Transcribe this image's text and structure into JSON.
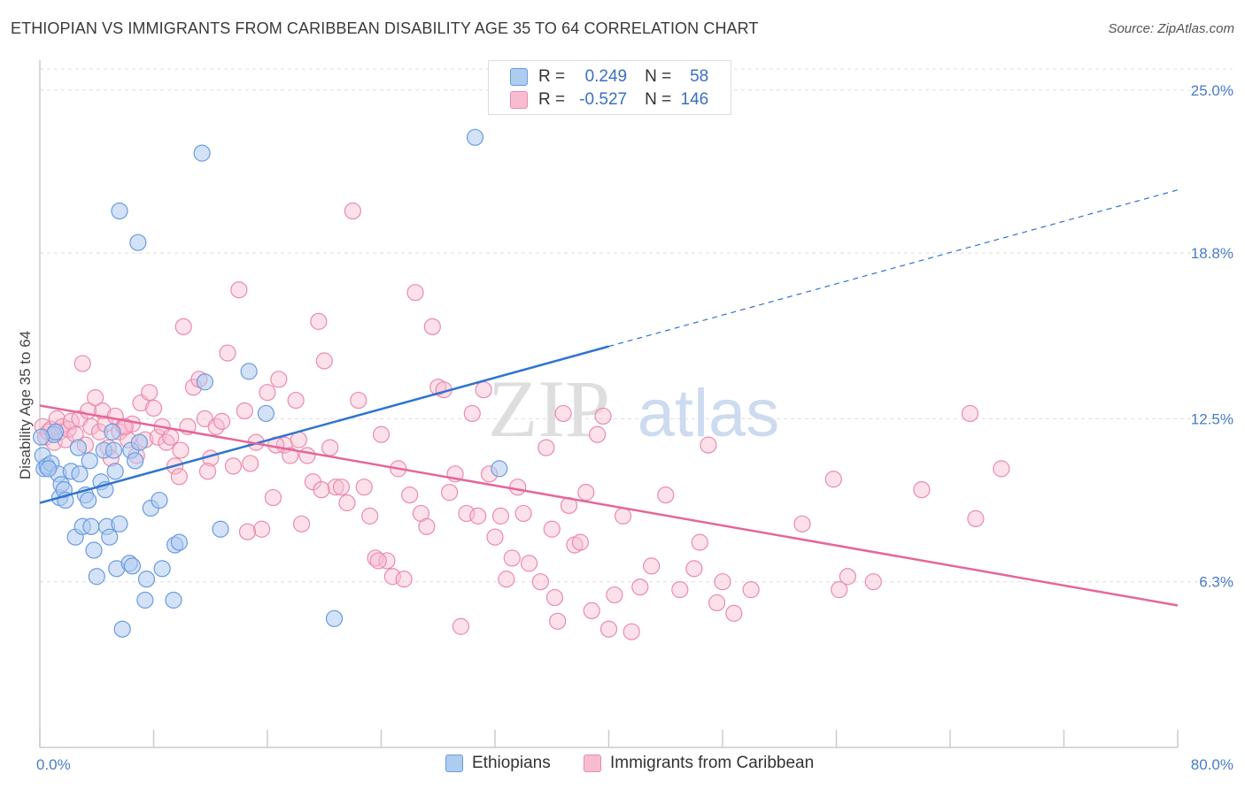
{
  "header": {
    "title": "ETHIOPIAN VS IMMIGRANTS FROM CARIBBEAN DISABILITY AGE 35 TO 64 CORRELATION CHART",
    "source": "Source: ZipAtlas.com"
  },
  "watermark": {
    "part1": "ZIP",
    "part2": "atlas"
  },
  "legend": {
    "series": [
      {
        "name": "Ethiopians",
        "r_label": "R =",
        "r_value": "0.249",
        "n_label": "N =",
        "n_value": "58"
      },
      {
        "name": "Immigrants from Caribbean",
        "r_label": "R =",
        "r_value": "-0.527",
        "n_label": "N =",
        "n_value": "146"
      }
    ]
  },
  "colors": {
    "ethiopian_fill": "#aecbf0",
    "ethiopian_stroke": "#6a9be0",
    "ethiopian_line": "#2f74d0",
    "caribbean_fill": "#f8bcd0",
    "caribbean_stroke": "#eb8aaa",
    "caribbean_line": "#e4679a",
    "grid": "#dddddd",
    "axis_text": "#4a7cc9",
    "watermark": "#dcdcdc",
    "watermark2": "#c8d8ee"
  },
  "chart_data": {
    "type": "scatter",
    "title": "ETHIOPIAN VS IMMIGRANTS FROM CARIBBEAN DISABILITY AGE 35 TO 64 CORRELATION CHART",
    "ylabel": "Disability Age 35 to 64",
    "xlabel": "",
    "xlim": [
      0,
      80
    ],
    "ylim": [
      0,
      25.8
    ],
    "x_tick_labels": [
      {
        "value": 0,
        "label": "0.0%"
      },
      {
        "value": 80,
        "label": "80.0%"
      }
    ],
    "y_ticks": [
      {
        "value": 6.3,
        "label": "6.3%"
      },
      {
        "value": 12.5,
        "label": "12.5%"
      },
      {
        "value": 18.8,
        "label": "18.8%"
      },
      {
        "value": 25.0,
        "label": "25.0%"
      }
    ],
    "legend_position": "bottom",
    "series": [
      {
        "name": "Ethiopians",
        "trend": {
          "x_start": 0,
          "y_start": 9.3,
          "x_solid_end": 40,
          "x_end": 80,
          "y_end": 21.2
        },
        "points": [
          [
            0.2,
            11.1
          ],
          [
            0.3,
            10.6
          ],
          [
            0.5,
            10.7
          ],
          [
            0.8,
            10.8
          ],
          [
            1.0,
            11.9
          ],
          [
            1.3,
            10.4
          ],
          [
            1.4,
            9.5
          ],
          [
            1.5,
            10.0
          ],
          [
            1.7,
            9.8
          ],
          [
            1.8,
            9.4
          ],
          [
            2.2,
            10.5
          ],
          [
            2.5,
            8.0
          ],
          [
            2.7,
            11.4
          ],
          [
            2.8,
            10.4
          ],
          [
            3.0,
            8.4
          ],
          [
            3.2,
            9.6
          ],
          [
            3.4,
            9.4
          ],
          [
            3.5,
            10.9
          ],
          [
            3.6,
            8.4
          ],
          [
            3.8,
            7.5
          ],
          [
            4.0,
            6.5
          ],
          [
            4.3,
            10.1
          ],
          [
            4.5,
            11.3
          ],
          [
            4.6,
            9.8
          ],
          [
            4.7,
            8.4
          ],
          [
            4.9,
            8.0
          ],
          [
            5.1,
            12.0
          ],
          [
            5.2,
            11.3
          ],
          [
            5.3,
            10.5
          ],
          [
            5.4,
            6.8
          ],
          [
            5.6,
            8.5
          ],
          [
            5.8,
            4.5
          ],
          [
            5.6,
            20.4
          ],
          [
            6.3,
            7.0
          ],
          [
            6.4,
            11.3
          ],
          [
            6.5,
            6.9
          ],
          [
            6.7,
            10.9
          ],
          [
            6.9,
            19.2
          ],
          [
            7.0,
            11.6
          ],
          [
            7.4,
            5.6
          ],
          [
            7.5,
            6.4
          ],
          [
            7.8,
            9.1
          ],
          [
            8.4,
            9.4
          ],
          [
            8.6,
            6.8
          ],
          [
            9.4,
            5.6
          ],
          [
            9.5,
            7.7
          ],
          [
            9.8,
            7.8
          ],
          [
            11.4,
            22.6
          ],
          [
            11.6,
            13.9
          ],
          [
            12.7,
            8.3
          ],
          [
            14.7,
            14.3
          ],
          [
            15.9,
            12.7
          ],
          [
            20.7,
            4.9
          ],
          [
            30.6,
            23.2
          ],
          [
            32.3,
            10.6
          ],
          [
            0.6,
            10.6
          ],
          [
            1.1,
            12.0
          ],
          [
            0.1,
            11.8
          ]
        ]
      },
      {
        "name": "Immigrants from Caribbean",
        "trend": {
          "x_start": 0,
          "y_start": 13.0,
          "x_end": 80,
          "y_end": 5.4
        },
        "points": [
          [
            0.2,
            12.2
          ],
          [
            0.4,
            11.8
          ],
          [
            0.6,
            12.0
          ],
          [
            0.8,
            12.1
          ],
          [
            1.0,
            11.6
          ],
          [
            1.2,
            12.5
          ],
          [
            1.4,
            12.0
          ],
          [
            1.6,
            12.2
          ],
          [
            1.8,
            11.7
          ],
          [
            2.0,
            12.1
          ],
          [
            2.2,
            12.4
          ],
          [
            2.5,
            11.9
          ],
          [
            2.8,
            12.5
          ],
          [
            3.0,
            14.6
          ],
          [
            3.2,
            11.5
          ],
          [
            3.4,
            12.8
          ],
          [
            3.6,
            12.2
          ],
          [
            3.9,
            13.3
          ],
          [
            4.2,
            12.0
          ],
          [
            4.4,
            12.8
          ],
          [
            4.6,
            12.3
          ],
          [
            4.8,
            11.4
          ],
          [
            5.0,
            11.0
          ],
          [
            5.3,
            12.6
          ],
          [
            5.6,
            12.0
          ],
          [
            5.9,
            12.2
          ],
          [
            6.2,
            11.7
          ],
          [
            6.5,
            12.3
          ],
          [
            6.8,
            11.1
          ],
          [
            7.1,
            13.1
          ],
          [
            7.4,
            11.7
          ],
          [
            7.7,
            13.5
          ],
          [
            8.0,
            12.9
          ],
          [
            8.3,
            11.8
          ],
          [
            8.6,
            12.2
          ],
          [
            8.9,
            11.6
          ],
          [
            9.2,
            11.8
          ],
          [
            9.5,
            10.7
          ],
          [
            9.8,
            10.3
          ],
          [
            10.1,
            16.0
          ],
          [
            10.4,
            12.2
          ],
          [
            10.8,
            13.7
          ],
          [
            11.2,
            14.0
          ],
          [
            11.6,
            12.5
          ],
          [
            12.0,
            11.0
          ],
          [
            12.4,
            12.2
          ],
          [
            12.8,
            12.4
          ],
          [
            13.2,
            15.0
          ],
          [
            13.6,
            10.7
          ],
          [
            14.0,
            17.4
          ],
          [
            14.4,
            12.8
          ],
          [
            14.8,
            10.8
          ],
          [
            15.2,
            11.6
          ],
          [
            15.6,
            8.3
          ],
          [
            16.0,
            13.5
          ],
          [
            16.4,
            9.5
          ],
          [
            16.8,
            14.0
          ],
          [
            17.2,
            11.5
          ],
          [
            17.6,
            11.1
          ],
          [
            18.0,
            13.2
          ],
          [
            18.4,
            8.5
          ],
          [
            18.8,
            11.1
          ],
          [
            19.2,
            10.1
          ],
          [
            19.6,
            16.2
          ],
          [
            20.0,
            14.7
          ],
          [
            20.4,
            11.4
          ],
          [
            20.8,
            9.9
          ],
          [
            21.2,
            9.9
          ],
          [
            21.6,
            9.3
          ],
          [
            22.0,
            20.4
          ],
          [
            22.4,
            13.2
          ],
          [
            22.8,
            9.9
          ],
          [
            23.2,
            8.8
          ],
          [
            23.6,
            7.2
          ],
          [
            24.0,
            11.9
          ],
          [
            24.4,
            7.1
          ],
          [
            24.8,
            6.5
          ],
          [
            25.2,
            10.6
          ],
          [
            25.6,
            6.4
          ],
          [
            26.0,
            9.6
          ],
          [
            26.4,
            17.3
          ],
          [
            26.8,
            8.9
          ],
          [
            27.2,
            8.4
          ],
          [
            27.6,
            16.0
          ],
          [
            28.0,
            13.7
          ],
          [
            28.4,
            13.6
          ],
          [
            28.8,
            9.7
          ],
          [
            29.2,
            10.4
          ],
          [
            29.6,
            4.6
          ],
          [
            30.0,
            8.9
          ],
          [
            30.4,
            12.7
          ],
          [
            30.8,
            8.8
          ],
          [
            31.2,
            13.6
          ],
          [
            31.6,
            10.4
          ],
          [
            32.0,
            8.0
          ],
          [
            32.4,
            8.8
          ],
          [
            32.8,
            6.4
          ],
          [
            33.2,
            7.2
          ],
          [
            33.6,
            9.9
          ],
          [
            34.0,
            8.9
          ],
          [
            34.4,
            7.0
          ],
          [
            35.2,
            6.3
          ],
          [
            35.6,
            11.4
          ],
          [
            36.0,
            8.3
          ],
          [
            36.4,
            4.8
          ],
          [
            36.8,
            12.7
          ],
          [
            37.2,
            9.2
          ],
          [
            37.6,
            7.7
          ],
          [
            38.0,
            7.8
          ],
          [
            38.4,
            9.7
          ],
          [
            38.8,
            5.2
          ],
          [
            39.2,
            11.9
          ],
          [
            39.6,
            12.6
          ],
          [
            40.0,
            4.5
          ],
          [
            40.4,
            5.8
          ],
          [
            41.0,
            8.8
          ],
          [
            41.6,
            4.4
          ],
          [
            42.2,
            6.1
          ],
          [
            43.0,
            6.9
          ],
          [
            44.0,
            9.6
          ],
          [
            45.0,
            6.0
          ],
          [
            46.0,
            6.8
          ],
          [
            46.4,
            7.8
          ],
          [
            47.0,
            11.5
          ],
          [
            47.6,
            5.5
          ],
          [
            48.0,
            6.3
          ],
          [
            48.8,
            5.1
          ],
          [
            50.0,
            6.0
          ],
          [
            53.6,
            8.5
          ],
          [
            55.8,
            10.2
          ],
          [
            56.2,
            6.0
          ],
          [
            56.8,
            6.5
          ],
          [
            58.6,
            6.3
          ],
          [
            62.0,
            9.8
          ],
          [
            65.4,
            12.7
          ],
          [
            65.8,
            8.7
          ],
          [
            67.6,
            10.6
          ],
          [
            14.6,
            8.2
          ],
          [
            11.8,
            10.5
          ],
          [
            9.9,
            11.3
          ],
          [
            23.8,
            7.1
          ],
          [
            36.2,
            5.7
          ],
          [
            16.6,
            11.5
          ],
          [
            19.8,
            9.8
          ],
          [
            6.0,
            12.2
          ],
          [
            18.2,
            11.7
          ]
        ]
      }
    ]
  }
}
